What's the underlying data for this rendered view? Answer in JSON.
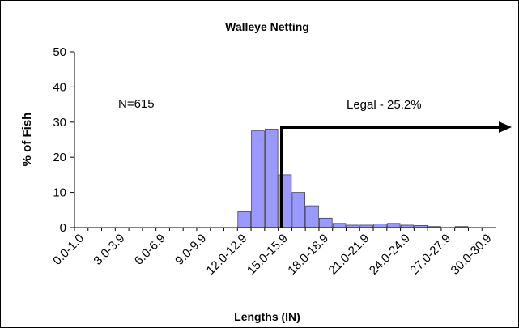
{
  "chart_data": {
    "type": "bar",
    "title": "Walleye Netting",
    "xlabel": "Lengths (IN)",
    "ylabel": "% of Fish",
    "annotations": [
      "N=615",
      "Legal - 25.2%"
    ],
    "categories": [
      "0.0-1.0",
      null,
      null,
      "3.0-3.9",
      null,
      null,
      "6.0-6.9",
      null,
      null,
      "9.0-9.9",
      null,
      null,
      "12.0-12.9",
      null,
      null,
      "15.0-15.9",
      null,
      null,
      "18.0-18.9",
      null,
      null,
      "21.0-21.9",
      null,
      null,
      "24.0-24.9",
      null,
      null,
      "27.0-27.9",
      null,
      null,
      "30.0-30.9"
    ],
    "values": [
      0,
      0,
      0,
      0,
      0,
      0,
      0,
      0,
      0,
      0,
      0,
      0,
      4.5,
      27.5,
      28,
      15,
      10,
      6.2,
      2.7,
      1.2,
      0.7,
      0.7,
      1.0,
      1.2,
      0.7,
      0.6,
      0.3,
      0,
      0.3,
      0,
      0
    ],
    "color": "#9999ff",
    "ylim": [
      0,
      50
    ],
    "yticks": [
      0,
      10,
      20,
      30,
      40,
      50
    ],
    "grid": false
  }
}
